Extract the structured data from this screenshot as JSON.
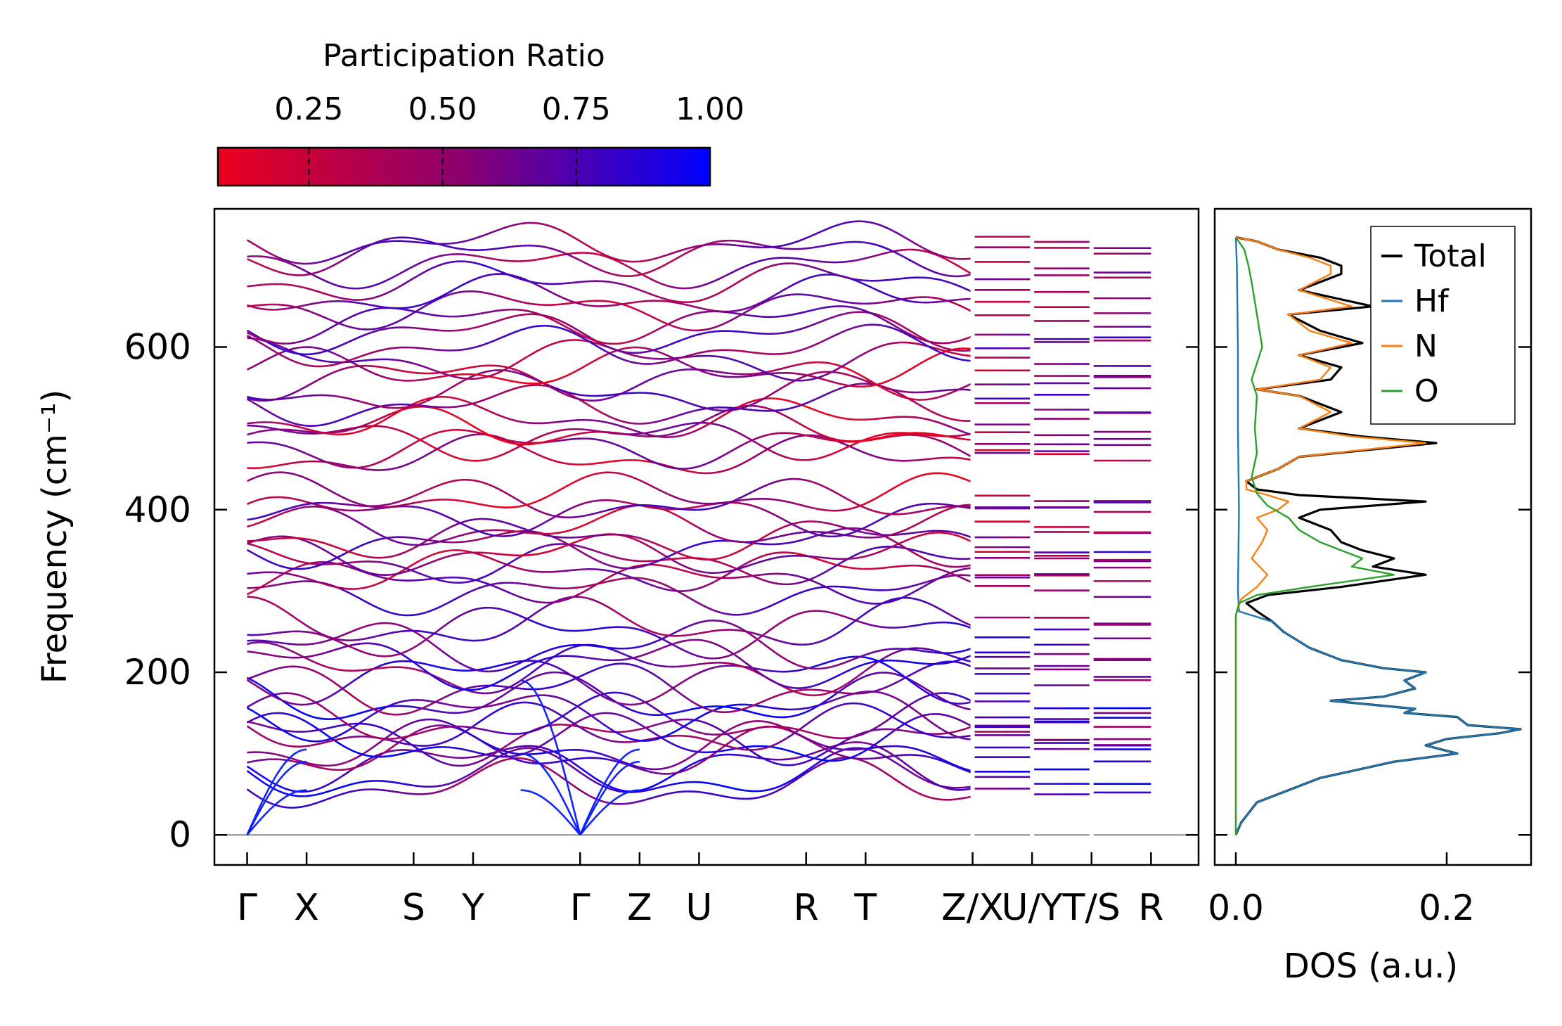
{
  "chart_data": [
    {
      "type": "line",
      "title": "",
      "xlabel": "",
      "ylabel": "Frequency (cm⁻¹)",
      "ylim": [
        -37,
        770
      ],
      "yticks": [
        "0",
        "200",
        "400",
        "600"
      ],
      "ytick_values": [
        0,
        200,
        400,
        600
      ],
      "zero_line": true,
      "kpoint_labels": [
        {
          "label": "Γ",
          "x": 0.0
        },
        {
          "label": "X",
          "x": 1.0
        },
        {
          "label": "S",
          "x": 2.8
        },
        {
          "label": "Y",
          "x": 3.8
        },
        {
          "label": "Γ",
          "x": 5.6
        },
        {
          "label": "Z",
          "x": 6.6
        },
        {
          "label": "U",
          "x": 7.6
        },
        {
          "label": "R",
          "x": 9.4
        },
        {
          "label": "T",
          "x": 10.4
        },
        {
          "label": "Z/X",
          "x": 12.2
        },
        {
          "label": "U/Y",
          "x": 13.2
        },
        {
          "label": "T/S",
          "x": 14.2
        },
        {
          "label": "R",
          "x": 15.2
        }
      ],
      "segment_breaks": [
        12.2,
        13.2,
        14.2
      ],
      "acoustic_gamma": [
        0.0,
        5.6
      ],
      "band_groups": {
        "acoustic_low": [
          60,
          72,
          88,
          100,
          108,
          115,
          120,
          128,
          140,
          150,
          165,
          180,
          195,
          205,
          212,
          232,
          250,
          258
        ],
        "optical_mid": [
          298,
          312,
          325,
          335,
          345,
          355,
          365,
          378,
          395,
          410,
          418
        ],
        "optical_high": [
          465,
          478,
          488,
          500,
          512,
          528,
          545,
          562,
          572,
          585,
          600,
          618,
          632,
          648,
          662,
          680,
          700,
          715,
          728
        ]
      },
      "colorbar": {
        "label": "Participation Ratio",
        "ticks": [
          "0.25",
          "0.50",
          "0.75",
          "1.00"
        ],
        "tick_values": [
          0.25,
          0.5,
          0.75,
          1.0
        ],
        "range": [
          0.08,
          1.0
        ],
        "color_low": "#ea001e",
        "color_high": "#0000ff"
      }
    },
    {
      "type": "line",
      "title": "",
      "xlabel": "DOS (a.u.)",
      "ylabel": "",
      "xlim": [
        -0.02,
        0.28
      ],
      "xticks": [
        "0.0",
        "0.2"
      ],
      "xtick_values": [
        0.0,
        0.2
      ],
      "legend_position": "top-right",
      "series": [
        {
          "name": "Total",
          "color": "#000000",
          "freq": [
            0,
            15,
            40,
            70,
            90,
            100,
            110,
            118,
            125,
            130,
            135,
            145,
            150,
            155,
            165,
            170,
            180,
            190,
            200,
            205,
            215,
            230,
            250,
            262,
            275,
            285,
            295,
            305,
            320,
            330,
            340,
            350,
            360,
            375,
            390,
            400,
            410,
            418,
            425,
            435,
            450,
            465,
            482,
            490,
            500,
            520,
            540,
            548,
            560,
            575,
            590,
            605,
            620,
            640,
            650,
            670,
            690,
            700,
            710,
            720,
            730,
            735
          ],
          "values": [
            0,
            0.005,
            0.02,
            0.08,
            0.15,
            0.21,
            0.18,
            0.2,
            0.25,
            0.27,
            0.22,
            0.21,
            0.16,
            0.17,
            0.09,
            0.14,
            0.17,
            0.16,
            0.18,
            0.14,
            0.1,
            0.07,
            0.045,
            0.035,
            0.02,
            0.01,
            0.03,
            0.1,
            0.18,
            0.13,
            0.15,
            0.12,
            0.1,
            0.09,
            0.06,
            0.08,
            0.18,
            0.06,
            0.02,
            0.01,
            0.04,
            0.06,
            0.19,
            0.12,
            0.06,
            0.1,
            0.06,
            0.02,
            0.09,
            0.1,
            0.06,
            0.12,
            0.08,
            0.05,
            0.13,
            0.06,
            0.1,
            0.1,
            0.08,
            0.04,
            0.02,
            0.0
          ]
        },
        {
          "name": "Hf",
          "color": "#1f77b4",
          "freq": [
            0,
            15,
            40,
            70,
            90,
            100,
            110,
            118,
            125,
            130,
            135,
            145,
            150,
            155,
            165,
            170,
            180,
            190,
            200,
            205,
            215,
            230,
            250,
            262,
            275,
            300,
            400,
            500,
            600,
            700,
            735
          ],
          "values": [
            0,
            0.005,
            0.02,
            0.08,
            0.15,
            0.21,
            0.18,
            0.2,
            0.25,
            0.27,
            0.22,
            0.21,
            0.16,
            0.17,
            0.09,
            0.14,
            0.17,
            0.16,
            0.18,
            0.14,
            0.1,
            0.07,
            0.045,
            0.035,
            0.003,
            0.002,
            0.003,
            0.002,
            0.002,
            0.001,
            0.0
          ]
        },
        {
          "name": "N",
          "color": "#ff7f0e",
          "freq": [
            0,
            270,
            290,
            305,
            320,
            340,
            360,
            375,
            390,
            400,
            410,
            418,
            425,
            435,
            450,
            465,
            482,
            490,
            500,
            520,
            540,
            548,
            560,
            575,
            590,
            605,
            620,
            640,
            650,
            670,
            690,
            700,
            710,
            720,
            730,
            735
          ],
          "values": [
            0,
            0.0,
            0.005,
            0.02,
            0.03,
            0.015,
            0.025,
            0.03,
            0.02,
            0.04,
            0.05,
            0.03,
            0.01,
            0.01,
            0.04,
            0.06,
            0.18,
            0.11,
            0.06,
            0.09,
            0.06,
            0.02,
            0.08,
            0.09,
            0.06,
            0.11,
            0.07,
            0.05,
            0.11,
            0.06,
            0.09,
            0.09,
            0.07,
            0.04,
            0.02,
            0.0
          ]
        },
        {
          "name": "O",
          "color": "#2ca02c",
          "freq": [
            0,
            270,
            285,
            295,
            305,
            320,
            330,
            340,
            350,
            360,
            375,
            390,
            405,
            420,
            440,
            470,
            500,
            540,
            560,
            600,
            640,
            680,
            700,
            720,
            735
          ],
          "values": [
            0,
            0.0,
            0.003,
            0.02,
            0.07,
            0.15,
            0.11,
            0.12,
            0.1,
            0.08,
            0.06,
            0.05,
            0.03,
            0.02,
            0.015,
            0.02,
            0.018,
            0.02,
            0.015,
            0.025,
            0.02,
            0.015,
            0.012,
            0.008,
            0.0
          ]
        }
      ]
    }
  ]
}
